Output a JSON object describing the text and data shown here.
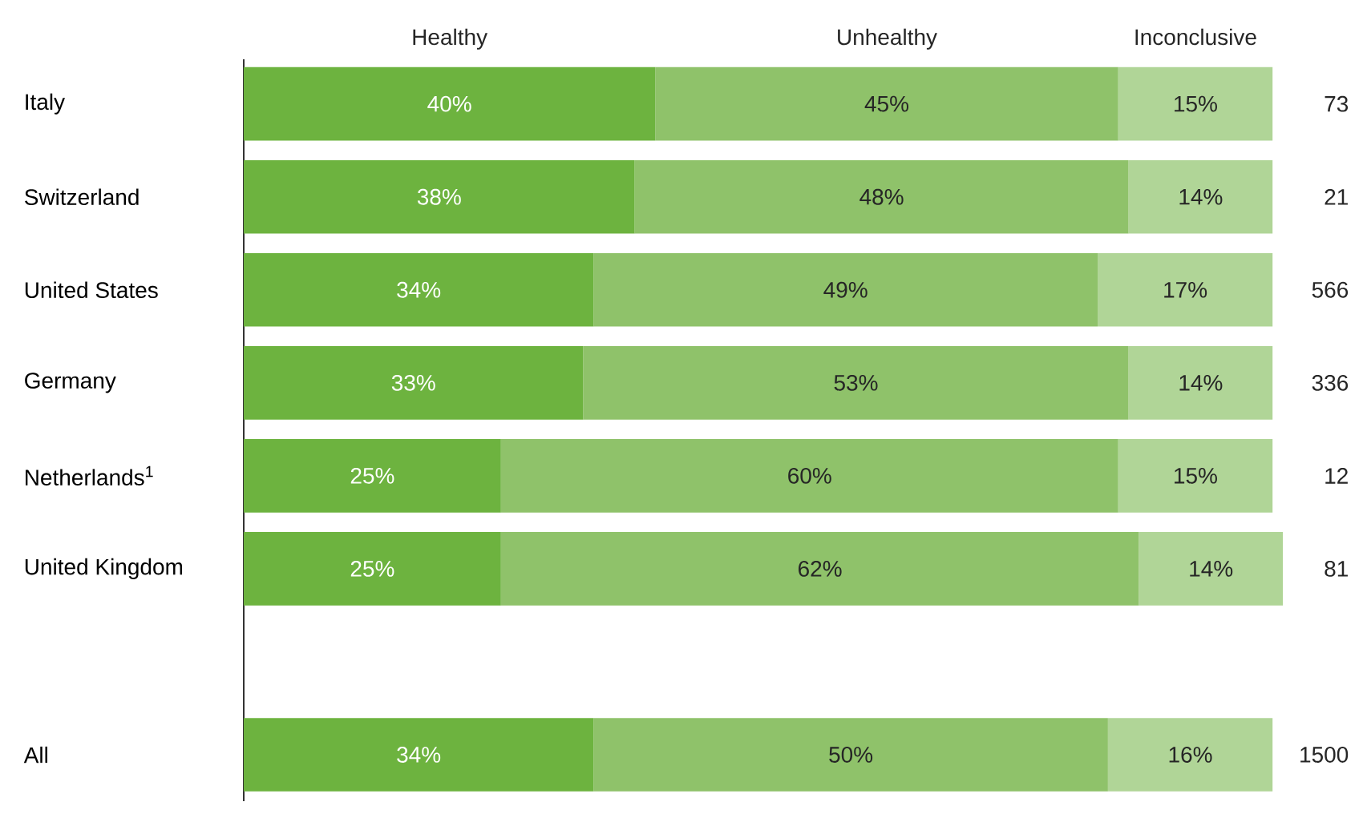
{
  "chart_data": {
    "type": "bar",
    "orientation": "horizontal",
    "stacked": true,
    "legend": false,
    "categories": [
      "Italy",
      "Switzerland",
      "United States",
      "Germany",
      "Netherlands$^{1}$",
      "United Kingdom",
      null,
      "All"
    ],
    "series": [
      {
        "name": "Healthy",
        "color": "#6db33f",
        "values": [
          40,
          38,
          34,
          33,
          25,
          25,
          null,
          34
        ],
        "value_labels": [
          "40%",
          "38%",
          "34%",
          "33%",
          "25%",
          "25%",
          null,
          "34%"
        ]
      },
      {
        "name": "Unhealthy",
        "color": "#8fc26a",
        "values": [
          45,
          48,
          49,
          53,
          60,
          62,
          null,
          50
        ],
        "value_labels": [
          "45%",
          "48%",
          "49%",
          "53%",
          "60%",
          "62%",
          null,
          "50%"
        ]
      },
      {
        "name": "Inconclusive",
        "color": "#b0d597",
        "values": [
          15,
          14,
          17,
          14,
          15,
          14,
          null,
          16
        ],
        "value_labels": [
          "15%",
          "14%",
          "17%",
          "14%",
          "15%",
          "14%",
          null,
          "16%"
        ]
      }
    ],
    "annotations": [
      "73",
      "21",
      "566",
      "336",
      "12",
      "81",
      "1500"
    ]
  }
}
